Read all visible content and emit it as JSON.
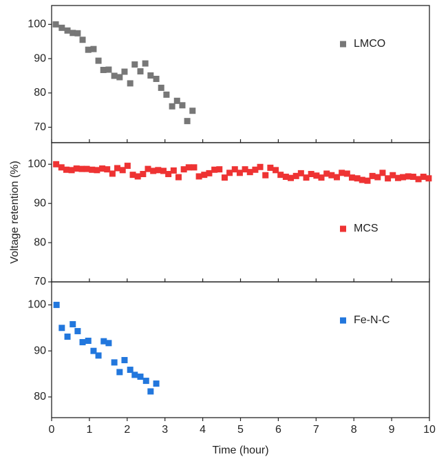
{
  "chart_data": [
    {
      "type": "scatter",
      "xlim": [
        0,
        10
      ],
      "xticks": [
        0,
        1,
        2,
        3,
        4,
        5,
        6,
        7,
        8,
        9,
        10
      ],
      "ylim": [
        65.5,
        105.5
      ],
      "yticks": [
        70,
        80,
        90,
        100
      ],
      "legend": "upper right",
      "series": [
        {
          "name": "LMCO",
          "color": "#777777",
          "x": [
            0.11,
            0.27,
            0.42,
            0.56,
            0.69,
            0.82,
            0.97,
            1.11,
            1.24,
            1.37,
            1.51,
            1.66,
            1.8,
            1.93,
            2.08,
            2.2,
            2.35,
            2.48,
            2.62,
            2.77,
            2.9,
            3.04,
            3.19,
            3.32,
            3.46,
            3.59,
            3.73
          ],
          "values": [
            100,
            99,
            98.2,
            97.5,
            97.4,
            95.5,
            92.6,
            92.8,
            89.4,
            86.7,
            86.8,
            85,
            84.6,
            86.2,
            82.8,
            88.3,
            86.3,
            88.6,
            85.1,
            84.1,
            81.5,
            79.5,
            76.1,
            77.7,
            76.4,
            71.8,
            74.8
          ]
        }
      ]
    },
    {
      "type": "scatter",
      "ylabel": "Voltage retention (%)",
      "xlim": [
        0,
        10
      ],
      "xticks": [
        0,
        1,
        2,
        3,
        4,
        5,
        6,
        7,
        8,
        9,
        10
      ],
      "ylim": [
        70,
        105.5
      ],
      "yticks": [
        70,
        80,
        90,
        100
      ],
      "legend": "center right",
      "series": [
        {
          "name": "MCS",
          "color": "#ee3333",
          "x": [
            0.12,
            0.26,
            0.39,
            0.53,
            0.66,
            0.8,
            0.93,
            1.07,
            1.2,
            1.34,
            1.47,
            1.61,
            1.74,
            1.88,
            2.01,
            2.15,
            2.28,
            2.42,
            2.55,
            2.69,
            2.82,
            2.96,
            3.09,
            3.23,
            3.36,
            3.5,
            3.63,
            3.77,
            3.9,
            4.04,
            4.17,
            4.31,
            4.44,
            4.58,
            4.71,
            4.85,
            4.98,
            5.12,
            5.25,
            5.39,
            5.52,
            5.66,
            5.79,
            5.93,
            6.06,
            6.2,
            6.33,
            6.47,
            6.6,
            6.74,
            6.87,
            7.01,
            7.14,
            7.28,
            7.41,
            7.55,
            7.68,
            7.82,
            7.95,
            8.09,
            8.22,
            8.36,
            8.49,
            8.63,
            8.76,
            8.9,
            9.03,
            9.17,
            9.3,
            9.44,
            9.57,
            9.71,
            9.84,
            9.98
          ],
          "values": [
            100,
            99.2,
            98.6,
            98.5,
            98.9,
            98.8,
            98.8,
            98.6,
            98.5,
            98.9,
            98.7,
            97.6,
            99,
            98.5,
            99.6,
            97.3,
            96.9,
            97.5,
            98.8,
            98.3,
            98.5,
            98.3,
            97.5,
            98.4,
            96.7,
            98.7,
            99.2,
            99.2,
            96.9,
            97.3,
            97.7,
            98.6,
            98.7,
            96.6,
            97.8,
            98.7,
            97.8,
            98.7,
            98,
            98.6,
            99.3,
            97.2,
            99.1,
            98.5,
            97.3,
            96.8,
            96.5,
            97,
            97.7,
            96.6,
            97.5,
            97.1,
            96.6,
            97.6,
            97.2,
            96.7,
            97.8,
            97.6,
            96.6,
            96.4,
            96.0,
            95.8,
            97,
            96.7,
            97.8,
            96.4,
            97.2,
            96.5,
            96.7,
            96.9,
            96.8,
            96.2,
            96.8,
            96.4
          ]
        }
      ]
    },
    {
      "type": "scatter",
      "xlabel": "Time (hour)",
      "xlim": [
        0,
        10
      ],
      "xticks": [
        0,
        1,
        2,
        3,
        4,
        5,
        6,
        7,
        8,
        9,
        10
      ],
      "ylim": [
        75.5,
        105
      ],
      "yticks": [
        80,
        90,
        100
      ],
      "legend": "upper right",
      "series": [
        {
          "name": "Fe-N-C",
          "color": "#2277dd",
          "x": [
            0.13,
            0.27,
            0.42,
            0.56,
            0.69,
            0.82,
            0.97,
            1.11,
            1.24,
            1.38,
            1.51,
            1.66,
            1.8,
            1.93,
            2.08,
            2.2,
            2.35,
            2.5,
            2.62,
            2.77
          ],
          "values": [
            100,
            95,
            93.1,
            95.8,
            94.3,
            91.9,
            92.2,
            90,
            89,
            92.1,
            91.7,
            87.5,
            85.4,
            88,
            85.9,
            84.8,
            84.4,
            83.5,
            81.2,
            82.9
          ]
        }
      ]
    }
  ]
}
